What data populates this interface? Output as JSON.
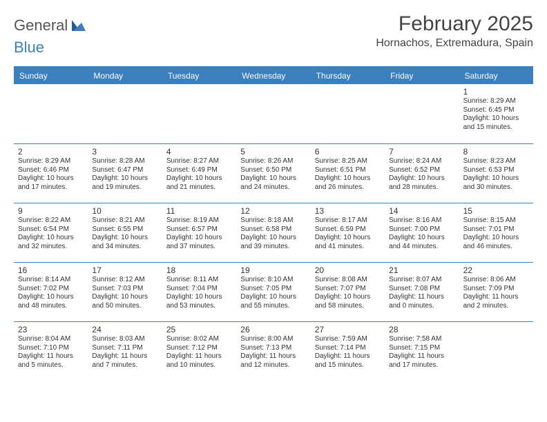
{
  "brand": {
    "word1": "General",
    "word2": "Blue"
  },
  "title": "February 2025",
  "location": "Hornachos, Extremadura, Spain",
  "colors": {
    "accent": "#3b7fbf",
    "text": "#333333",
    "background": "#ffffff",
    "logo_gray": "#555555"
  },
  "typography": {
    "title_fontsize": 30,
    "location_fontsize": 16,
    "dayheader_fontsize": 12,
    "daynum_fontsize": 12,
    "info_fontsize": 10,
    "font_family": "Arial"
  },
  "layout": {
    "columns": 7,
    "rows": 5,
    "cell_min_height": 86
  },
  "day_names": [
    "Sunday",
    "Monday",
    "Tuesday",
    "Wednesday",
    "Thursday",
    "Friday",
    "Saturday"
  ],
  "weeks": [
    [
      {
        "blank": true
      },
      {
        "blank": true
      },
      {
        "blank": true
      },
      {
        "blank": true
      },
      {
        "blank": true
      },
      {
        "blank": true
      },
      {
        "day": "1",
        "sunrise": "Sunrise: 8:29 AM",
        "sunset": "Sunset: 6:45 PM",
        "daylight": "Daylight: 10 hours and 15 minutes."
      }
    ],
    [
      {
        "day": "2",
        "sunrise": "Sunrise: 8:29 AM",
        "sunset": "Sunset: 6:46 PM",
        "daylight": "Daylight: 10 hours and 17 minutes."
      },
      {
        "day": "3",
        "sunrise": "Sunrise: 8:28 AM",
        "sunset": "Sunset: 6:47 PM",
        "daylight": "Daylight: 10 hours and 19 minutes."
      },
      {
        "day": "4",
        "sunrise": "Sunrise: 8:27 AM",
        "sunset": "Sunset: 6:49 PM",
        "daylight": "Daylight: 10 hours and 21 minutes."
      },
      {
        "day": "5",
        "sunrise": "Sunrise: 8:26 AM",
        "sunset": "Sunset: 6:50 PM",
        "daylight": "Daylight: 10 hours and 24 minutes."
      },
      {
        "day": "6",
        "sunrise": "Sunrise: 8:25 AM",
        "sunset": "Sunset: 6:51 PM",
        "daylight": "Daylight: 10 hours and 26 minutes."
      },
      {
        "day": "7",
        "sunrise": "Sunrise: 8:24 AM",
        "sunset": "Sunset: 6:52 PM",
        "daylight": "Daylight: 10 hours and 28 minutes."
      },
      {
        "day": "8",
        "sunrise": "Sunrise: 8:23 AM",
        "sunset": "Sunset: 6:53 PM",
        "daylight": "Daylight: 10 hours and 30 minutes."
      }
    ],
    [
      {
        "day": "9",
        "sunrise": "Sunrise: 8:22 AM",
        "sunset": "Sunset: 6:54 PM",
        "daylight": "Daylight: 10 hours and 32 minutes."
      },
      {
        "day": "10",
        "sunrise": "Sunrise: 8:21 AM",
        "sunset": "Sunset: 6:55 PM",
        "daylight": "Daylight: 10 hours and 34 minutes."
      },
      {
        "day": "11",
        "sunrise": "Sunrise: 8:19 AM",
        "sunset": "Sunset: 6:57 PM",
        "daylight": "Daylight: 10 hours and 37 minutes."
      },
      {
        "day": "12",
        "sunrise": "Sunrise: 8:18 AM",
        "sunset": "Sunset: 6:58 PM",
        "daylight": "Daylight: 10 hours and 39 minutes."
      },
      {
        "day": "13",
        "sunrise": "Sunrise: 8:17 AM",
        "sunset": "Sunset: 6:59 PM",
        "daylight": "Daylight: 10 hours and 41 minutes."
      },
      {
        "day": "14",
        "sunrise": "Sunrise: 8:16 AM",
        "sunset": "Sunset: 7:00 PM",
        "daylight": "Daylight: 10 hours and 44 minutes."
      },
      {
        "day": "15",
        "sunrise": "Sunrise: 8:15 AM",
        "sunset": "Sunset: 7:01 PM",
        "daylight": "Daylight: 10 hours and 46 minutes."
      }
    ],
    [
      {
        "day": "16",
        "sunrise": "Sunrise: 8:14 AM",
        "sunset": "Sunset: 7:02 PM",
        "daylight": "Daylight: 10 hours and 48 minutes."
      },
      {
        "day": "17",
        "sunrise": "Sunrise: 8:12 AM",
        "sunset": "Sunset: 7:03 PM",
        "daylight": "Daylight: 10 hours and 50 minutes."
      },
      {
        "day": "18",
        "sunrise": "Sunrise: 8:11 AM",
        "sunset": "Sunset: 7:04 PM",
        "daylight": "Daylight: 10 hours and 53 minutes."
      },
      {
        "day": "19",
        "sunrise": "Sunrise: 8:10 AM",
        "sunset": "Sunset: 7:05 PM",
        "daylight": "Daylight: 10 hours and 55 minutes."
      },
      {
        "day": "20",
        "sunrise": "Sunrise: 8:08 AM",
        "sunset": "Sunset: 7:07 PM",
        "daylight": "Daylight: 10 hours and 58 minutes."
      },
      {
        "day": "21",
        "sunrise": "Sunrise: 8:07 AM",
        "sunset": "Sunset: 7:08 PM",
        "daylight": "Daylight: 11 hours and 0 minutes."
      },
      {
        "day": "22",
        "sunrise": "Sunrise: 8:06 AM",
        "sunset": "Sunset: 7:09 PM",
        "daylight": "Daylight: 11 hours and 2 minutes."
      }
    ],
    [
      {
        "day": "23",
        "sunrise": "Sunrise: 8:04 AM",
        "sunset": "Sunset: 7:10 PM",
        "daylight": "Daylight: 11 hours and 5 minutes."
      },
      {
        "day": "24",
        "sunrise": "Sunrise: 8:03 AM",
        "sunset": "Sunset: 7:11 PM",
        "daylight": "Daylight: 11 hours and 7 minutes."
      },
      {
        "day": "25",
        "sunrise": "Sunrise: 8:02 AM",
        "sunset": "Sunset: 7:12 PM",
        "daylight": "Daylight: 11 hours and 10 minutes."
      },
      {
        "day": "26",
        "sunrise": "Sunrise: 8:00 AM",
        "sunset": "Sunset: 7:13 PM",
        "daylight": "Daylight: 11 hours and 12 minutes."
      },
      {
        "day": "27",
        "sunrise": "Sunrise: 7:59 AM",
        "sunset": "Sunset: 7:14 PM",
        "daylight": "Daylight: 11 hours and 15 minutes."
      },
      {
        "day": "28",
        "sunrise": "Sunrise: 7:58 AM",
        "sunset": "Sunset: 7:15 PM",
        "daylight": "Daylight: 11 hours and 17 minutes."
      },
      {
        "blank": true
      }
    ]
  ]
}
